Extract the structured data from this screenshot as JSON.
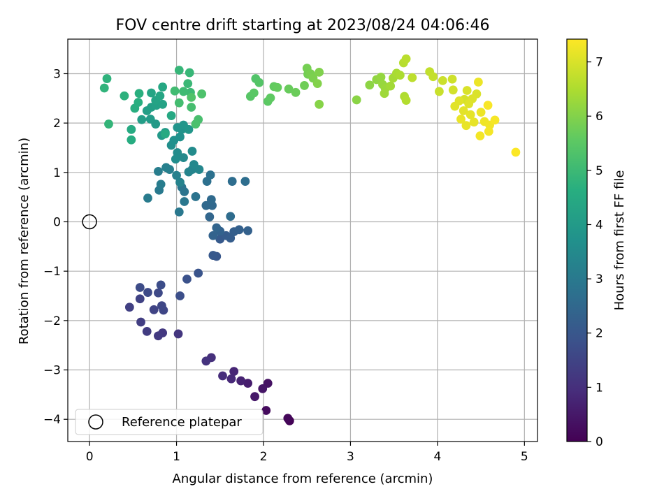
{
  "chart_data": {
    "type": "scatter",
    "title": "FOV centre drift starting at 2023/08/24 04:06:46",
    "xlabel": "Angular distance from reference (arcmin)",
    "ylabel": "Rotation from reference (arcmin)",
    "xlim": [
      -0.25,
      5.15
    ],
    "ylim": [
      -4.45,
      3.7
    ],
    "x_ticks": [
      0,
      1,
      2,
      3,
      4,
      5
    ],
    "y_ticks": [
      -4,
      -3,
      -2,
      -1,
      0,
      1,
      2,
      3
    ],
    "grid": true,
    "legend": {
      "placement": "lower-left",
      "entries": [
        "Reference platepar"
      ]
    },
    "reference_point": {
      "x": 0,
      "y": 0,
      "marker": "open-circle"
    },
    "colorbar": {
      "label": "Hours from first FF file",
      "colormap": "viridis",
      "range": [
        0,
        7.42
      ],
      "ticks": [
        0,
        1,
        2,
        3,
        4,
        5,
        6,
        7
      ]
    },
    "series": [
      {
        "color_by": "hours",
        "points": [
          [
            2.3,
            -4.03,
            0.05
          ],
          [
            2.28,
            -3.98,
            0.12
          ],
          [
            2.03,
            -3.82,
            0.22
          ],
          [
            2.05,
            -3.27,
            0.35
          ],
          [
            1.99,
            -3.38,
            0.42
          ],
          [
            1.9,
            -3.54,
            0.5
          ],
          [
            1.82,
            -3.27,
            0.6
          ],
          [
            1.74,
            -3.22,
            0.7
          ],
          [
            1.66,
            -3.03,
            0.78
          ],
          [
            1.63,
            -3.18,
            0.85
          ],
          [
            1.53,
            -3.12,
            0.92
          ],
          [
            1.4,
            -2.75,
            1.0
          ],
          [
            1.34,
            -2.82,
            1.08
          ],
          [
            1.02,
            -2.27,
            1.15
          ],
          [
            0.84,
            -2.25,
            1.2
          ],
          [
            0.79,
            -2.31,
            1.25
          ],
          [
            0.66,
            -2.22,
            1.3
          ],
          [
            0.59,
            -2.03,
            1.35
          ],
          [
            0.46,
            -1.73,
            1.4
          ],
          [
            0.58,
            -1.56,
            1.45
          ],
          [
            0.74,
            -1.78,
            1.5
          ],
          [
            0.85,
            -1.79,
            1.55
          ],
          [
            0.83,
            -1.7,
            1.58
          ],
          [
            0.79,
            -1.44,
            1.62
          ],
          [
            0.67,
            -1.43,
            1.66
          ],
          [
            0.58,
            -1.33,
            1.7
          ],
          [
            0.82,
            -1.28,
            1.74
          ],
          [
            1.04,
            -1.5,
            1.78
          ],
          [
            1.12,
            -1.16,
            1.85
          ],
          [
            1.25,
            -1.04,
            1.92
          ],
          [
            1.46,
            -0.7,
            2.0
          ],
          [
            1.42,
            -0.68,
            2.05
          ],
          [
            1.5,
            -0.35,
            2.1
          ],
          [
            1.57,
            -0.28,
            2.15
          ],
          [
            1.62,
            -0.33,
            2.18
          ],
          [
            1.66,
            -0.2,
            2.22
          ],
          [
            1.72,
            -0.16,
            2.26
          ],
          [
            1.82,
            -0.18,
            2.3
          ],
          [
            1.5,
            -0.19,
            2.33
          ],
          [
            1.42,
            -0.28,
            2.36
          ],
          [
            1.46,
            -0.12,
            2.4
          ],
          [
            1.38,
            0.1,
            2.44
          ],
          [
            1.41,
            0.33,
            2.48
          ],
          [
            1.34,
            0.33,
            2.52
          ],
          [
            1.4,
            0.45,
            2.56
          ],
          [
            1.62,
            0.11,
            2.6
          ],
          [
            1.64,
            0.82,
            2.64
          ],
          [
            1.79,
            0.82,
            2.68
          ],
          [
            1.35,
            0.82,
            2.72
          ],
          [
            1.39,
            0.95,
            2.76
          ],
          [
            1.22,
            0.51,
            2.8
          ],
          [
            1.09,
            0.61,
            2.84
          ],
          [
            1.06,
            0.7,
            2.88
          ],
          [
            1.09,
            0.41,
            2.92
          ],
          [
            1.03,
            0.2,
            2.96
          ],
          [
            0.8,
            0.64,
            3.0
          ],
          [
            0.67,
            0.48,
            3.04
          ],
          [
            0.82,
            0.76,
            3.08
          ],
          [
            0.79,
            1.02,
            3.12
          ],
          [
            0.92,
            1.06,
            3.16
          ],
          [
            0.88,
            1.1,
            3.2
          ],
          [
            1.0,
            0.94,
            3.24
          ],
          [
            1.04,
            0.8,
            3.28
          ],
          [
            1.14,
            1.01,
            3.32
          ],
          [
            1.18,
            1.06,
            3.36
          ],
          [
            1.26,
            1.06,
            3.4
          ],
          [
            1.2,
            1.16,
            3.44
          ],
          [
            1.08,
            1.3,
            3.48
          ],
          [
            1.18,
            1.43,
            3.52
          ],
          [
            1.01,
            1.4,
            3.56
          ],
          [
            0.99,
            1.27,
            3.6
          ],
          [
            0.94,
            1.55,
            3.64
          ],
          [
            0.97,
            1.65,
            3.68
          ],
          [
            1.04,
            1.72,
            3.72
          ],
          [
            1.06,
            1.87,
            3.76
          ],
          [
            1.01,
            1.91,
            3.8
          ],
          [
            1.08,
            1.96,
            3.84
          ],
          [
            1.14,
            1.87,
            3.88
          ],
          [
            0.87,
            1.81,
            3.92
          ],
          [
            0.83,
            1.75,
            3.96
          ],
          [
            0.76,
            1.98,
            4.0
          ],
          [
            0.7,
            2.08,
            4.04
          ],
          [
            0.6,
            2.07,
            4.08
          ],
          [
            0.66,
            2.25,
            4.12
          ],
          [
            0.71,
            2.32,
            4.16
          ],
          [
            0.77,
            2.36,
            4.2
          ],
          [
            0.84,
            2.38,
            4.24
          ],
          [
            0.76,
            2.46,
            4.28
          ],
          [
            0.71,
            2.61,
            4.32
          ],
          [
            0.81,
            2.55,
            4.36
          ],
          [
            0.84,
            2.73,
            4.4
          ],
          [
            0.94,
            2.15,
            4.44
          ],
          [
            0.87,
            1.78,
            4.48
          ],
          [
            0.48,
            1.87,
            4.52
          ],
          [
            0.48,
            1.66,
            4.56
          ],
          [
            0.52,
            2.3,
            4.6
          ],
          [
            0.56,
            2.42,
            4.64
          ],
          [
            0.57,
            2.6,
            4.68
          ],
          [
            0.4,
            2.55,
            4.72
          ],
          [
            0.2,
            2.9,
            4.76
          ],
          [
            0.17,
            2.71,
            4.8
          ],
          [
            0.22,
            1.98,
            4.84
          ],
          [
            1.03,
            3.07,
            4.88
          ],
          [
            1.15,
            3.02,
            4.92
          ],
          [
            1.13,
            2.8,
            4.96
          ],
          [
            1.16,
            2.62,
            5.0
          ],
          [
            1.08,
            2.64,
            5.04
          ],
          [
            0.98,
            2.65,
            5.08
          ],
          [
            1.03,
            2.41,
            5.12
          ],
          [
            1.17,
            2.32,
            5.16
          ],
          [
            1.25,
            2.07,
            5.2
          ],
          [
            1.22,
            1.98,
            5.24
          ],
          [
            1.29,
            2.59,
            5.28
          ],
          [
            1.17,
            2.52,
            5.32
          ],
          [
            1.91,
            2.9,
            5.36
          ],
          [
            1.95,
            2.82,
            5.4
          ],
          [
            1.85,
            2.54,
            5.44
          ],
          [
            1.89,
            2.61,
            5.48
          ],
          [
            2.05,
            2.44,
            5.52
          ],
          [
            2.08,
            2.51,
            5.56
          ],
          [
            2.12,
            2.74,
            5.6
          ],
          [
            2.16,
            2.72,
            5.64
          ],
          [
            2.29,
            2.69,
            5.68
          ],
          [
            2.37,
            2.62,
            5.72
          ],
          [
            2.47,
            2.76,
            5.76
          ],
          [
            2.51,
            2.99,
            5.8
          ],
          [
            2.5,
            3.11,
            5.84
          ],
          [
            2.54,
            3.0,
            5.88
          ],
          [
            2.57,
            2.91,
            5.92
          ],
          [
            2.64,
            3.03,
            5.96
          ],
          [
            2.62,
            2.8,
            6.0
          ],
          [
            2.64,
            2.38,
            6.04
          ],
          [
            3.07,
            2.47,
            6.08
          ],
          [
            3.22,
            2.77,
            6.12
          ],
          [
            3.3,
            2.88,
            6.16
          ],
          [
            3.35,
            2.93,
            6.2
          ],
          [
            3.37,
            2.78,
            6.24
          ],
          [
            3.4,
            2.7,
            6.28
          ],
          [
            3.39,
            2.6,
            6.32
          ],
          [
            3.46,
            2.75,
            6.36
          ],
          [
            3.49,
            2.91,
            6.4
          ],
          [
            3.53,
            3.01,
            6.44
          ],
          [
            3.57,
            2.97,
            6.48
          ],
          [
            3.62,
            2.54,
            6.52
          ],
          [
            3.64,
            2.46,
            6.56
          ],
          [
            3.61,
            3.22,
            6.6
          ],
          [
            3.64,
            3.3,
            6.64
          ],
          [
            3.71,
            2.92,
            6.68
          ],
          [
            3.91,
            3.04,
            6.72
          ],
          [
            3.95,
            2.94,
            6.76
          ],
          [
            4.02,
            2.64,
            6.8
          ],
          [
            4.06,
            2.86,
            6.84
          ],
          [
            4.17,
            2.89,
            6.88
          ],
          [
            4.18,
            2.67,
            6.92
          ],
          [
            4.31,
            2.48,
            6.96
          ],
          [
            4.34,
            2.66,
            7.0
          ],
          [
            4.45,
            2.59,
            7.02
          ],
          [
            4.4,
            2.49,
            7.04
          ],
          [
            4.36,
            2.39,
            7.06
          ],
          [
            4.25,
            2.45,
            7.08
          ],
          [
            4.2,
            2.34,
            7.1
          ],
          [
            4.3,
            2.25,
            7.12
          ],
          [
            4.38,
            2.17,
            7.14
          ],
          [
            4.42,
            2.02,
            7.16
          ],
          [
            4.33,
            1.95,
            7.18
          ],
          [
            4.27,
            2.08,
            7.2
          ],
          [
            4.47,
            2.83,
            7.22
          ],
          [
            4.5,
            2.22,
            7.24
          ],
          [
            4.54,
            2.03,
            7.26
          ],
          [
            4.6,
            1.96,
            7.28
          ],
          [
            4.49,
            1.74,
            7.3
          ],
          [
            4.59,
            1.83,
            7.32
          ],
          [
            4.66,
            2.06,
            7.34
          ],
          [
            4.58,
            2.36,
            7.36
          ],
          [
            4.9,
            1.41,
            7.4
          ]
        ]
      }
    ]
  }
}
